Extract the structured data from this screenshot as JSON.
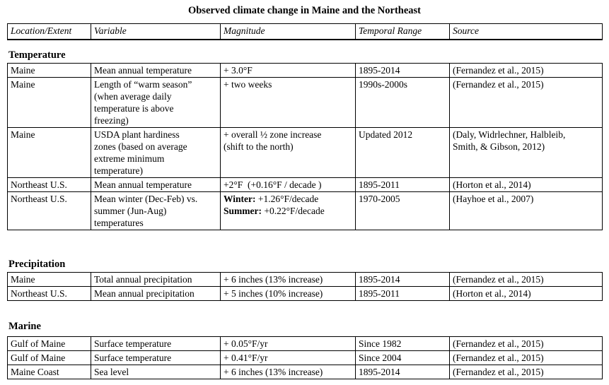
{
  "title": "Observed climate change in Maine and the Northeast",
  "columns": [
    "Location/Extent",
    "Variable",
    "Magnitude",
    "Temporal Range",
    "Source"
  ],
  "sections": [
    {
      "heading": "Temperature",
      "rows": [
        {
          "location": "Maine",
          "variable": "Mean annual temperature",
          "magnitude": "+ 3.0°F",
          "temporal": "1895-2014",
          "source": "(Fernandez et al., 2015)"
        },
        {
          "location": "Maine",
          "variable": "Length of “warm season”\n(when average daily\ntemperature is above\nfreezing)",
          "magnitude": "+ two weeks",
          "temporal": "1990s-2000s",
          "source": "(Fernandez et al., 2015)"
        },
        {
          "location": "Maine",
          "variable": "USDA plant hardiness\nzones (based on average\nextreme minimum\ntemperature)",
          "magnitude": "+ overall ½ zone increase\n(shift to the north)",
          "temporal": "Updated 2012",
          "source": "(Daly, Widrlechner, Halbleib,\nSmith, & Gibson, 2012)"
        },
        {
          "location": "Northeast U.S.",
          "variable": "Mean annual temperature",
          "magnitude": "+2°F  (+0.16°F / decade )",
          "temporal": "1895-2011",
          "source": "(Horton et al., 2014)"
        },
        {
          "location": "Northeast U.S.",
          "variable": "Mean winter (Dec-Feb) vs.\nsummer (Jun-Aug)\ntemperatures",
          "magnitude_lines": [
            {
              "label": "Winter:",
              "value": " +1.26°F/decade"
            },
            {
              "label": "Summer:",
              "value": " +0.22°F/decade"
            }
          ],
          "temporal": "1970-2005",
          "source": "(Hayhoe et al., 2007)"
        }
      ]
    },
    {
      "heading": "Precipitation",
      "rows": [
        {
          "location": "Maine",
          "variable": "Total annual precipitation",
          "magnitude": "+ 6 inches (13% increase)",
          "temporal": "1895-2014",
          "source": "(Fernandez et al., 2015)"
        },
        {
          "location": "Northeast U.S.",
          "variable": "Mean annual precipitation",
          "magnitude": "+ 5 inches (10% increase)",
          "temporal": "1895-2011",
          "source": "(Horton et al., 2014)"
        }
      ]
    },
    {
      "heading": "Marine",
      "rows": [
        {
          "location": "Gulf of Maine",
          "variable": "Surface temperature",
          "magnitude": "+ 0.05°F/yr",
          "temporal": "Since 1982",
          "source": "(Fernandez et al., 2015)"
        },
        {
          "location": "Gulf of Maine",
          "variable": "Surface temperature",
          "magnitude": "+ 0.41°F/yr",
          "temporal": "Since 2004",
          "source": "(Fernandez et al., 2015)"
        },
        {
          "location": "Maine Coast",
          "variable": "Sea level",
          "magnitude": "+ 6 inches (13% increase)",
          "temporal": "1895-2014",
          "source": "(Fernandez et al., 2015)"
        }
      ]
    }
  ]
}
